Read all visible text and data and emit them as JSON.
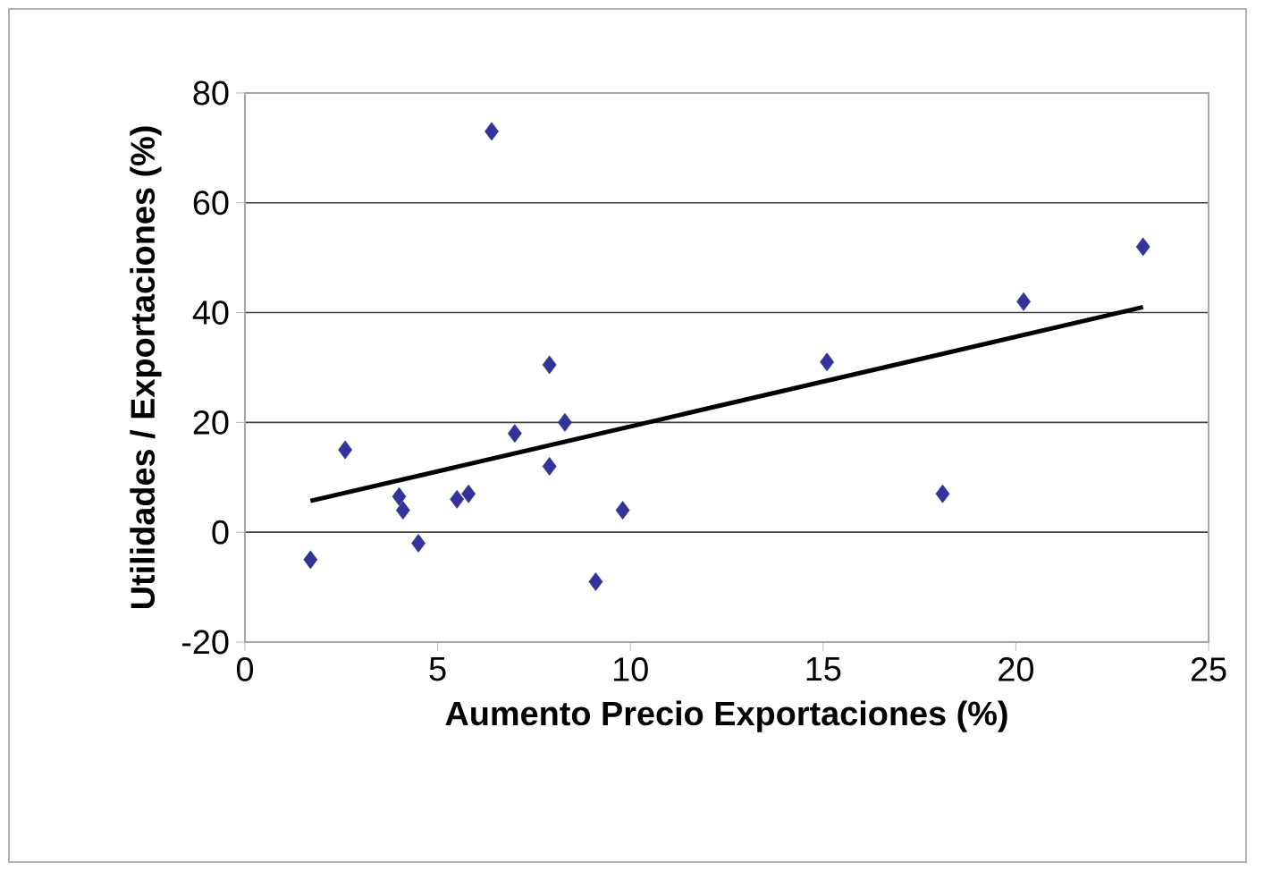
{
  "chart_data": {
    "type": "scatter",
    "xlabel": "Aumento Precio Exportaciones (%)",
    "ylabel": "Utilidades / Exportaciones (%)",
    "xlim": [
      0,
      25
    ],
    "xticks": [
      0,
      5,
      10,
      15,
      20,
      25
    ],
    "ylim": [
      -20,
      80
    ],
    "yticks": [
      -20,
      0,
      20,
      40,
      60,
      80
    ],
    "grid": "y",
    "marker": "diamond",
    "series": [
      {
        "color": "#333399",
        "x": [
          6.4,
          1.7,
          2.6,
          4.0,
          4.1,
          4.5,
          5.5,
          5.8,
          7.0,
          7.9,
          7.9,
          8.3,
          9.1,
          9.8,
          15.1,
          18.1,
          20.2,
          23.3
        ],
        "values": [
          73,
          -5,
          15,
          6.5,
          4,
          -2,
          6,
          7,
          18,
          30.5,
          12,
          20,
          -9,
          4,
          31,
          7,
          42,
          52
        ]
      },
      {
        "type": "line",
        "color": "#000000",
        "marker": "none",
        "x": [
          1.7,
          23.3
        ],
        "values": [
          5.7,
          41
        ]
      }
    ]
  }
}
